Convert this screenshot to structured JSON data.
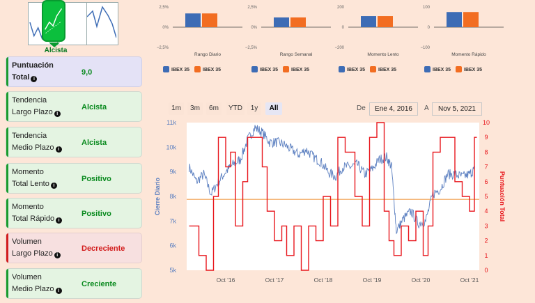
{
  "trend_selector": {
    "selected_label": "Alcista"
  },
  "metrics": [
    {
      "label_line1": "Puntuación",
      "label_line2": "Total",
      "value": "9,0",
      "value_color": "#0a8a1f",
      "style": "purple"
    },
    {
      "label_line1": "Tendencia",
      "label_line2": "Largo Plazo",
      "value": "Alcista",
      "value_color": "#0a8a1f",
      "style": "green"
    },
    {
      "label_line1": "Tendencia",
      "label_line2": "Medio Plazo",
      "value": "Alcista",
      "value_color": "#0a8a1f",
      "style": "green"
    },
    {
      "label_line1": "Momento",
      "label_line2": "Total Lento",
      "value": "Positivo",
      "value_color": "#0a8a1f",
      "style": "green"
    },
    {
      "label_line1": "Momento",
      "label_line2": "Total Rápido",
      "value": "Positivo",
      "value_color": "#0a8a1f",
      "style": "green"
    },
    {
      "label_line1": "Volumen",
      "label_line2": "Largo Plazo",
      "value": "Decreciente",
      "value_color": "#d21c1c",
      "style": "red"
    },
    {
      "label_line1": "Volumen",
      "label_line2": "Medio Plazo",
      "value": "Creciente",
      "value_color": "#0a8a1f",
      "style": "green"
    }
  ],
  "mini_charts": [
    {
      "title": "Rango Diario",
      "ticks": [
        "2,5%",
        "0%",
        "−2,5%"
      ],
      "ymax": 2.5,
      "values": [
        1.7,
        1.7
      ],
      "legend": [
        "IBEX 35",
        "IBEX 35"
      ]
    },
    {
      "title": "Rango Semanal",
      "ticks": [
        "2,5%",
        "0%",
        "−2,5%"
      ],
      "ymax": 2.5,
      "values": [
        1.2,
        1.2
      ],
      "legend": [
        "IBEX 35",
        "IBEX 35"
      ]
    },
    {
      "title": "Momento Lento",
      "ticks": [
        "200",
        "0",
        "−200"
      ],
      "ymax": 200,
      "values": [
        110,
        110
      ],
      "legend": [
        "IBEX 35",
        "IBEX 35"
      ]
    },
    {
      "title": "Momento Rápido",
      "ticks": [
        "100",
        "0",
        "−100"
      ],
      "ymax": 100,
      "values": [
        75,
        75
      ],
      "legend": [
        "IBEX 35",
        "IBEX 35"
      ]
    }
  ],
  "colors": {
    "series_blue": "#3d6cb5",
    "series_orange": "#f26d21",
    "score_red": "#e8161c",
    "price_blue": "#5b7fc0",
    "threshold": "#f5b77a"
  },
  "range_selector": {
    "buttons": [
      "1m",
      "3m",
      "6m",
      "YTD",
      "1y",
      "All"
    ],
    "active": "All",
    "from_label": "De",
    "from_value": "Ene 4, 2016",
    "to_label": "A",
    "to_value": "Nov 5, 2021"
  },
  "chart_data": {
    "type": "line",
    "title": "",
    "xlabel": "",
    "ylabel_left": "Cierre Diario",
    "ylabel_right": "Puntuación Total",
    "x_ticks": [
      "Oct '16",
      "Oct '17",
      "Oct '18",
      "Oct '19",
      "Oct '20",
      "Oct '21"
    ],
    "y_left_ticks": [
      "11k",
      "10k",
      "9k",
      "8k",
      "7k",
      "6k",
      "5k"
    ],
    "y_right_ticks": [
      "10",
      "9",
      "8",
      "7",
      "6",
      "5",
      "4",
      "3",
      "2",
      "1",
      "0"
    ],
    "y_left_range": [
      5000,
      11000
    ],
    "y_right_range": [
      0,
      10
    ],
    "threshold_score": 4.8,
    "series": [
      {
        "name": "Cierre Diario",
        "axis": "left",
        "x": [
          2016.0,
          2016.15,
          2016.3,
          2016.45,
          2016.6,
          2016.75,
          2016.9,
          2017.05,
          2017.2,
          2017.35,
          2017.5,
          2017.65,
          2017.8,
          2017.95,
          2018.1,
          2018.25,
          2018.4,
          2018.55,
          2018.7,
          2018.85,
          2019.0,
          2019.15,
          2019.3,
          2019.45,
          2019.6,
          2019.75,
          2019.9,
          2020.05,
          2020.15,
          2020.25,
          2020.4,
          2020.55,
          2020.7,
          2020.85,
          2021.0,
          2021.15,
          2021.3,
          2021.45,
          2021.6,
          2021.75,
          2021.85
        ],
        "y": [
          9200,
          8600,
          8900,
          8100,
          8600,
          9000,
          9300,
          9500,
          10300,
          10800,
          10600,
          10200,
          10200,
          10100,
          9900,
          9700,
          9900,
          9600,
          9400,
          9000,
          8800,
          9200,
          9200,
          9300,
          8900,
          9100,
          9500,
          9600,
          9200,
          6600,
          7100,
          7400,
          6900,
          7000,
          8100,
          8300,
          8900,
          8900,
          8800,
          8900,
          9100
        ]
      },
      {
        "name": "Puntuación Total",
        "axis": "right",
        "x": [
          2016.0,
          2016.2,
          2016.35,
          2016.5,
          2016.6,
          2016.75,
          2016.85,
          2016.95,
          2017.1,
          2017.2,
          2017.3,
          2017.5,
          2017.6,
          2017.75,
          2017.9,
          2018.0,
          2018.15,
          2018.3,
          2018.45,
          2018.6,
          2018.75,
          2018.9,
          2019.05,
          2019.2,
          2019.4,
          2019.55,
          2019.7,
          2019.85,
          2020.0,
          2020.1,
          2020.2,
          2020.35,
          2020.5,
          2020.65,
          2020.8,
          2020.9,
          2021.0,
          2021.15,
          2021.3,
          2021.45,
          2021.6,
          2021.75,
          2021.85
        ],
        "y": [
          3,
          1,
          0,
          5,
          9,
          7,
          8,
          3,
          6,
          9,
          9,
          7,
          4,
          2,
          3,
          1,
          3,
          0,
          3,
          2,
          5,
          3,
          9,
          8,
          5,
          3,
          9,
          10,
          4,
          2,
          1,
          3,
          2,
          4,
          1,
          3,
          8,
          9,
          9,
          6,
          5,
          4,
          9
        ]
      }
    ]
  }
}
